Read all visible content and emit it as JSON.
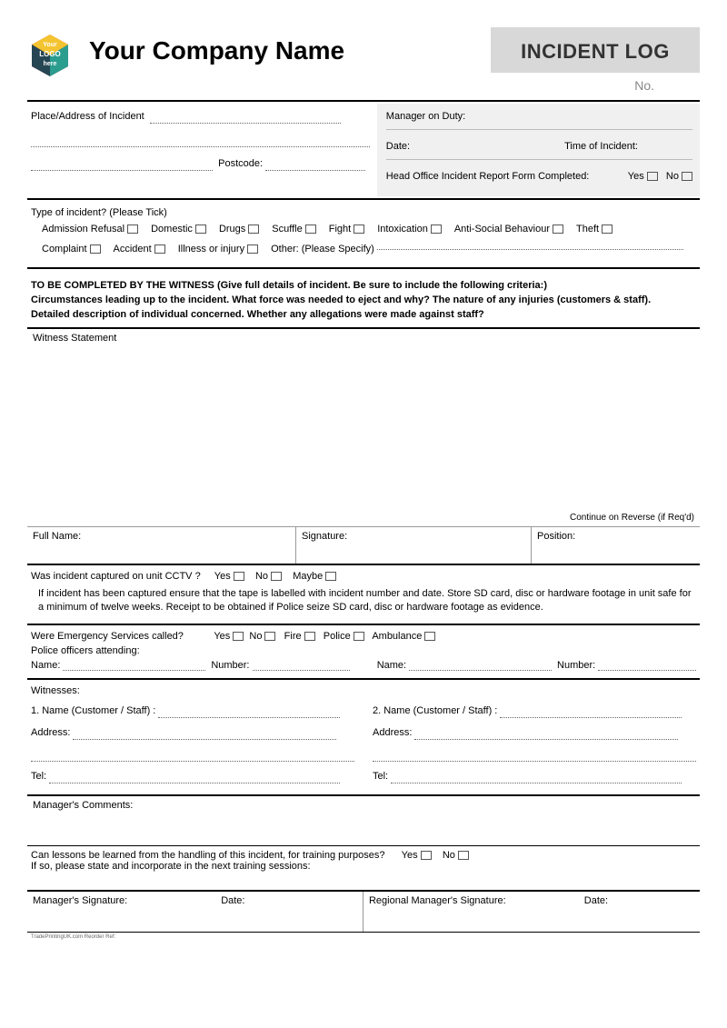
{
  "header": {
    "logo_text_top": "Your",
    "logo_text_mid": "LOGO",
    "logo_text_bot": "here",
    "company": "Your Company Name",
    "title": "INCIDENT LOG",
    "no_label": "No."
  },
  "top": {
    "place_label": "Place/Address of Incident",
    "postcode_label": "Postcode:",
    "manager_label": "Manager on Duty:",
    "date_label": "Date:",
    "time_label": "Time of Incident:",
    "head_office_label": "Head Office Incident Report Form Completed:",
    "yes": "Yes",
    "no": "No"
  },
  "type": {
    "title": "Type of incident? (Please Tick)",
    "row1": [
      "Admission Refusal",
      "Domestic",
      "Drugs",
      "Scuffle",
      "Fight",
      "Intoxication",
      "Anti-Social Behaviour",
      "Theft"
    ],
    "row2": [
      "Complaint",
      "Accident",
      "Illness or injury"
    ],
    "other_label": "Other: (Please Specify)"
  },
  "instructions": {
    "line1": "TO BE COMPLETED BY THE WITNESS (Give full details of incident. Be sure to include the following criteria:)",
    "line2": "Circumstances leading up to the incident. What force was needed to eject and why? The nature of any injuries (customers & staff).",
    "line3": "Detailed description of individual concerned. Whether any allegations were made against staff?"
  },
  "witness_box": {
    "title": "Witness Statement",
    "continue": "Continue on Reverse (if Req'd)"
  },
  "sig": {
    "fullname": "Full Name:",
    "signature": "Signature:",
    "position": "Position:"
  },
  "cctv": {
    "question": "Was incident captured on unit CCTV ?",
    "yes": "Yes",
    "no": "No",
    "maybe": "Maybe",
    "note": "If incident has been captured ensure that the tape is labelled with incident number and date. Store SD card, disc or hardware footage in unit safe for a minimum of twelve weeks. Receipt to be obtained if Police seize SD card, disc or hardware footage as evidence."
  },
  "emerg": {
    "question": "Were Emergency Services called?",
    "yes": "Yes",
    "no": "No",
    "fire": "Fire",
    "police": "Police",
    "ambulance": "Ambulance",
    "police_attending": "Police officers attending:",
    "name": "Name:",
    "number": "Number:"
  },
  "witnesses": {
    "title": "Witnesses:",
    "name1": "1. Name (Customer / Staff) :",
    "name2": "2. Name (Customer / Staff) :",
    "address": "Address:",
    "tel": "Tel:"
  },
  "comments": {
    "title": "Manager's Comments:"
  },
  "lessons": {
    "q": "Can lessons be learned from the handling of this incident, for training purposes?",
    "yes": "Yes",
    "no": "No",
    "note": "If so, please state and incorporate in the next training sessions:"
  },
  "final": {
    "mgr_sig": "Manager's Signature:",
    "date": "Date:",
    "reg_mgr_sig": "Regional Manager's Signature:"
  },
  "footer": "TradePrintingUK.com Reorder Ref:"
}
